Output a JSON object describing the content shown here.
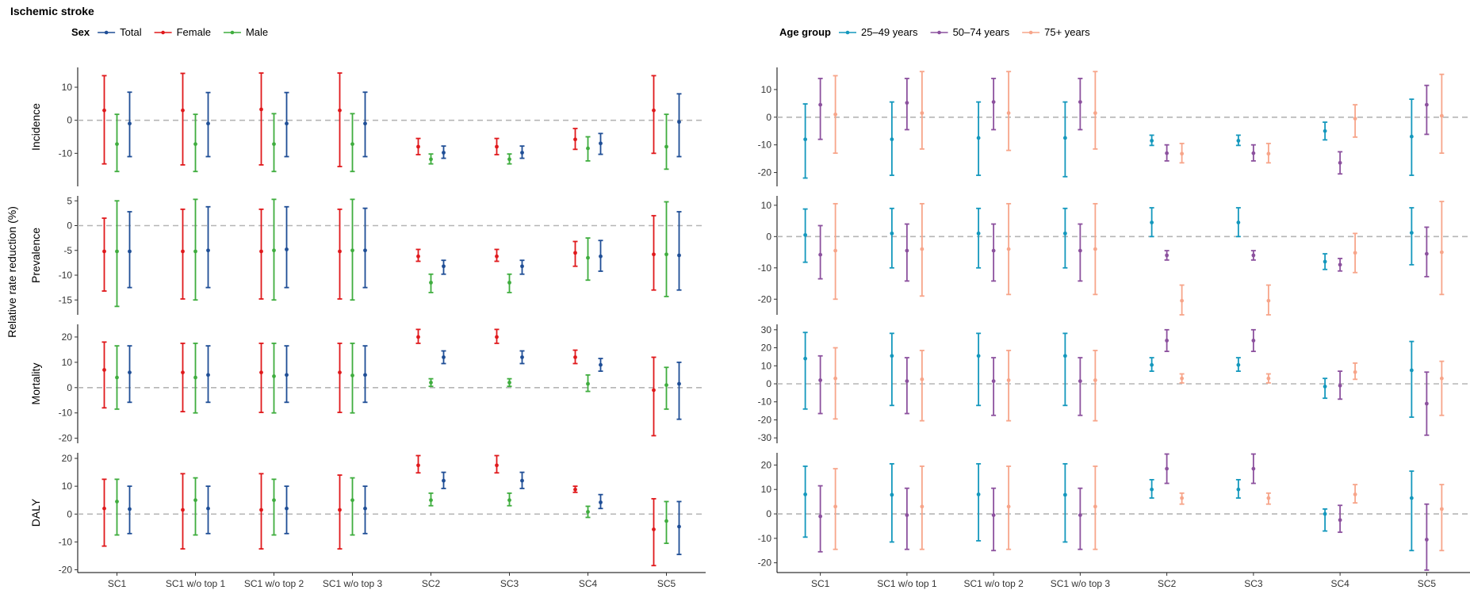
{
  "title": "Ischemic stroke",
  "ylabel": "Relative rate reduction (%)",
  "categories": [
    "SC1",
    "SC1 w/o top 1",
    "SC1 w/o top 2",
    "SC1 w/o top 3",
    "SC2",
    "SC3",
    "SC4",
    "SC5"
  ],
  "colors": {
    "Total": "#1f4e96",
    "Female": "#e0191c",
    "Male": "#3fad3e",
    "25–49 years": "#1498bd",
    "50–74 years": "#8c519e",
    "75+ years": "#f7a58a",
    "reference_line": "#b5b5b5"
  },
  "legends": [
    {
      "title": "Sex",
      "entries": [
        "Total",
        "Female",
        "Male"
      ]
    },
    {
      "title": "Age group",
      "entries": [
        "25–49 years",
        "50–74 years",
        "75+ years"
      ]
    }
  ],
  "chart_data": [
    {
      "type": "errorbar",
      "panel": "sex",
      "row": "Incidence",
      "ylim": [
        -20,
        16
      ],
      "yticks": [
        -10,
        0,
        10
      ],
      "categories": [
        "SC1",
        "SC1 w/o top 1",
        "SC1 w/o top 2",
        "SC1 w/o top 3",
        "SC2",
        "SC3",
        "SC4",
        "SC5"
      ],
      "series": [
        {
          "name": "Female",
          "values": [
            3,
            3,
            3.3,
            3,
            -8,
            -8,
            -5.8,
            3
          ],
          "lower": [
            -13.2,
            -13.5,
            -13.5,
            -14,
            -10.4,
            -10.4,
            -8.8,
            -10
          ],
          "upper": [
            13.5,
            14.2,
            14.3,
            14.3,
            -5.5,
            -5.5,
            -2.5,
            13.5
          ]
        },
        {
          "name": "Male",
          "values": [
            -7.2,
            -7.2,
            -7.2,
            -7.2,
            -11.8,
            -11.8,
            -8.5,
            -8
          ],
          "lower": [
            -15.5,
            -15.5,
            -15.5,
            -15.5,
            -13.2,
            -13.2,
            -12.3,
            -14.8
          ],
          "upper": [
            1.8,
            1.8,
            2,
            2,
            -10.2,
            -10.2,
            -5,
            1.8
          ]
        },
        {
          "name": "Total",
          "values": [
            -1,
            -1,
            -1,
            -1,
            -9.8,
            -9.8,
            -7,
            -0.5
          ],
          "lower": [
            -11,
            -11,
            -11,
            -11,
            -11.5,
            -11.5,
            -10.3,
            -11
          ],
          "upper": [
            8.5,
            8.4,
            8.4,
            8.5,
            -7.8,
            -7.8,
            -4,
            8
          ]
        }
      ]
    },
    {
      "type": "errorbar",
      "panel": "sex",
      "row": "Prevalence",
      "ylim": [
        -18,
        6
      ],
      "yticks": [
        -15,
        -10,
        -5,
        0,
        5
      ],
      "categories": [
        "SC1",
        "SC1 w/o top 1",
        "SC1 w/o top 2",
        "SC1 w/o top 3",
        "SC2",
        "SC3",
        "SC4",
        "SC5"
      ],
      "series": [
        {
          "name": "Female",
          "values": [
            -5.2,
            -5.2,
            -5.2,
            -5.2,
            -6.2,
            -6.2,
            -5.5,
            -5.8
          ],
          "lower": [
            -13.2,
            -14.8,
            -14.8,
            -14.8,
            -7.2,
            -7.2,
            -8.2,
            -13
          ],
          "upper": [
            1.5,
            3.3,
            3.3,
            3.3,
            -4.8,
            -4.8,
            -3.2,
            2
          ]
        },
        {
          "name": "Male",
          "values": [
            -5.2,
            -5.2,
            -5,
            -5,
            -11.5,
            -11.5,
            -6.5,
            -5.8
          ],
          "lower": [
            -16.3,
            -15,
            -15,
            -15,
            -13.5,
            -13.5,
            -11,
            -14.3
          ],
          "upper": [
            5,
            5.3,
            5.3,
            5.3,
            -9.8,
            -9.8,
            -2.5,
            4.8
          ]
        },
        {
          "name": "Total",
          "values": [
            -5.2,
            -5,
            -4.8,
            -5,
            -8.2,
            -8.2,
            -6.2,
            -6
          ],
          "lower": [
            -12.5,
            -12.5,
            -12.5,
            -12.5,
            -9.8,
            -9.8,
            -9.2,
            -13
          ],
          "upper": [
            2.8,
            3.8,
            3.8,
            3.5,
            -7,
            -7,
            -3,
            2.8
          ]
        }
      ]
    },
    {
      "type": "errorbar",
      "panel": "sex",
      "row": "Mortality",
      "ylim": [
        -22,
        25
      ],
      "yticks": [
        -20,
        -10,
        0,
        10,
        20
      ],
      "categories": [
        "SC1",
        "SC1 w/o top 1",
        "SC1 w/o top 2",
        "SC1 w/o top 3",
        "SC2",
        "SC3",
        "SC4",
        "SC5"
      ],
      "series": [
        {
          "name": "Female",
          "values": [
            7,
            6,
            6,
            6,
            20,
            20,
            12,
            -1
          ],
          "lower": [
            -8,
            -9.5,
            -9.8,
            -9.8,
            17.5,
            17.5,
            9.5,
            -19
          ],
          "upper": [
            18,
            17.5,
            17.5,
            17.5,
            23,
            23,
            14.8,
            12
          ]
        },
        {
          "name": "Male",
          "values": [
            4,
            4,
            4.5,
            4.8,
            2,
            2,
            1.5,
            1
          ],
          "lower": [
            -8.5,
            -10,
            -10,
            -10,
            0.5,
            0.5,
            -1.5,
            -8.5
          ],
          "upper": [
            16.5,
            17.5,
            17.5,
            17.5,
            3.5,
            3.5,
            5,
            8
          ]
        },
        {
          "name": "Total",
          "values": [
            6,
            5,
            5,
            5,
            12,
            12,
            9,
            1.5
          ],
          "lower": [
            -5.8,
            -5.8,
            -5.8,
            -5.8,
            9.5,
            9.5,
            6.5,
            -12.5
          ],
          "upper": [
            16.5,
            16.5,
            16.5,
            16.5,
            14.5,
            14.5,
            11.5,
            10
          ]
        }
      ]
    },
    {
      "type": "errorbar",
      "panel": "sex",
      "row": "DALY",
      "ylim": [
        -21,
        22
      ],
      "yticks": [
        -20,
        -10,
        0,
        10,
        20
      ],
      "categories": [
        "SC1",
        "SC1 w/o top 1",
        "SC1 w/o top 2",
        "SC1 w/o top 3",
        "SC2",
        "SC3",
        "SC4",
        "SC5"
      ],
      "series": [
        {
          "name": "Female",
          "values": [
            2,
            1.5,
            1.5,
            1.5,
            17.5,
            17.5,
            8.8,
            -5.5
          ],
          "lower": [
            -11.5,
            -12.5,
            -12.5,
            -12.5,
            14.8,
            14.8,
            7.8,
            -18.5
          ],
          "upper": [
            12.5,
            14.5,
            14.5,
            14,
            21,
            21,
            10,
            5.5
          ]
        },
        {
          "name": "Male",
          "values": [
            4.5,
            5,
            5,
            5,
            5,
            5,
            0.8,
            -2.5
          ],
          "lower": [
            -7.5,
            -7.5,
            -7.5,
            -7.5,
            3,
            3,
            -1.2,
            -10.5
          ],
          "upper": [
            12.5,
            13,
            12.5,
            13,
            7.5,
            7.5,
            2.8,
            4.5
          ]
        },
        {
          "name": "Total",
          "values": [
            1.8,
            2,
            2,
            2,
            12,
            12,
            4.2,
            -4.5
          ],
          "lower": [
            -7,
            -7,
            -7,
            -7,
            9.2,
            9.2,
            2,
            -14.5
          ],
          "upper": [
            10,
            10,
            10,
            10,
            15,
            15,
            7,
            4.5
          ]
        }
      ]
    },
    {
      "type": "errorbar",
      "panel": "age",
      "row": "Incidence",
      "ylim": [
        -25,
        18
      ],
      "yticks": [
        -20,
        -10,
        0,
        10
      ],
      "categories": [
        "SC1",
        "SC1 w/o top 1",
        "SC1 w/o top 2",
        "SC1 w/o top 3",
        "SC2",
        "SC3",
        "SC4",
        "SC5"
      ],
      "series": [
        {
          "name": "25–49 years",
          "values": [
            -8,
            -8,
            -7.5,
            -7.5,
            -8.5,
            -8.5,
            -5,
            -7
          ],
          "lower": [
            -22,
            -21,
            -21,
            -21.5,
            -10.2,
            -10.2,
            -8.2,
            -21
          ],
          "upper": [
            4.8,
            5.5,
            5.5,
            5.5,
            -6.5,
            -6.5,
            -1.8,
            6.5
          ]
        },
        {
          "name": "50–74 years",
          "values": [
            4.5,
            5.2,
            5.5,
            5.5,
            -13,
            -13,
            -16.5,
            4.5
          ],
          "lower": [
            -8,
            -4.5,
            -4.5,
            -4.5,
            -15.8,
            -15.8,
            -20.5,
            -6.2
          ],
          "upper": [
            14,
            14,
            14,
            14,
            -10,
            -10,
            -12.5,
            11.5
          ]
        },
        {
          "name": "75+ years",
          "values": [
            1,
            1.5,
            1.5,
            1.5,
            -13.2,
            -13.2,
            -0.5,
            0.5
          ],
          "lower": [
            -13,
            -11.5,
            -12,
            -11.5,
            -16.5,
            -16.5,
            -7.2,
            -13
          ],
          "upper": [
            15,
            16.5,
            16.5,
            16.5,
            -9.5,
            -9.5,
            4.5,
            15.5
          ]
        }
      ]
    },
    {
      "type": "errorbar",
      "panel": "age",
      "row": "Prevalence",
      "ylim": [
        -25,
        13
      ],
      "yticks": [
        -20,
        -10,
        0,
        10
      ],
      "categories": [
        "SC1",
        "SC1 w/o top 1",
        "SC1 w/o top 2",
        "SC1 w/o top 3",
        "SC2",
        "SC3",
        "SC4",
        "SC5"
      ],
      "series": [
        {
          "name": "25–49 years",
          "values": [
            0.5,
            1,
            1,
            1,
            4.5,
            4.5,
            -8,
            1.2
          ],
          "lower": [
            -8.2,
            -10,
            -10,
            -10,
            0,
            0,
            -10.5,
            -9
          ],
          "upper": [
            8.8,
            9,
            9,
            9,
            9.2,
            9.2,
            -5.5,
            9.2
          ]
        },
        {
          "name": "50–74 years",
          "values": [
            -5.8,
            -4.5,
            -4.5,
            -4.5,
            -6,
            -6,
            -9,
            -5.5
          ],
          "lower": [
            -13.5,
            -14.2,
            -14.2,
            -14.2,
            -7.5,
            -7.5,
            -11,
            -12.8
          ],
          "upper": [
            3.5,
            4,
            4,
            4,
            -4.5,
            -4.5,
            -7,
            3
          ]
        },
        {
          "name": "75+ years",
          "values": [
            -4.5,
            -4,
            -4,
            -4,
            -20.5,
            -20.5,
            -5.2,
            -5
          ],
          "lower": [
            -20,
            -19,
            -18.5,
            -18.5,
            -25,
            -25,
            -11.5,
            -18.5
          ],
          "upper": [
            10.5,
            10.5,
            10.5,
            10.5,
            -15.5,
            -15.5,
            1,
            11.2
          ]
        }
      ]
    },
    {
      "type": "errorbar",
      "panel": "age",
      "row": "Mortality",
      "ylim": [
        -33,
        33
      ],
      "yticks": [
        -30,
        -20,
        -10,
        0,
        10,
        20,
        30
      ],
      "categories": [
        "SC1",
        "SC1 w/o top 1",
        "SC1 w/o top 2",
        "SC1 w/o top 3",
        "SC2",
        "SC3",
        "SC4",
        "SC5"
      ],
      "series": [
        {
          "name": "25–49 years",
          "values": [
            14,
            15.5,
            15.5,
            15.5,
            10.5,
            10.5,
            -1.5,
            7.5
          ],
          "lower": [
            -14,
            -12,
            -12,
            -12,
            7,
            7,
            -8,
            -18.5
          ],
          "upper": [
            28.5,
            28,
            28,
            28,
            14.5,
            14.5,
            3,
            23.5
          ]
        },
        {
          "name": "50–74 years",
          "values": [
            2,
            1.5,
            1.5,
            1.5,
            24,
            24,
            -1,
            -11
          ],
          "lower": [
            -16.5,
            -16.5,
            -17.5,
            -17.5,
            18,
            18,
            -8.5,
            -28.5
          ],
          "upper": [
            15.5,
            14.5,
            14.5,
            14.5,
            30,
            30,
            7,
            6.5
          ]
        },
        {
          "name": "75+ years",
          "values": [
            3,
            2.5,
            2,
            2,
            3,
            3,
            6.5,
            3
          ],
          "lower": [
            -19.5,
            -20.5,
            -20.5,
            -20.5,
            0.5,
            0.5,
            2.5,
            -17.5
          ],
          "upper": [
            20,
            18.5,
            18.5,
            18.5,
            5.5,
            5.5,
            11.5,
            12.5
          ]
        }
      ]
    },
    {
      "type": "errorbar",
      "panel": "age",
      "row": "DALY",
      "ylim": [
        -24,
        25
      ],
      "yticks": [
        -20,
        -10,
        0,
        10,
        20
      ],
      "categories": [
        "SC1",
        "SC1 w/o top 1",
        "SC1 w/o top 2",
        "SC1 w/o top 3",
        "SC2",
        "SC3",
        "SC4",
        "SC5"
      ],
      "series": [
        {
          "name": "25–49 years",
          "values": [
            8,
            7.8,
            8,
            7.8,
            10,
            10,
            0,
            6.5
          ],
          "lower": [
            -9.5,
            -11.5,
            -11,
            -11.5,
            6.5,
            6.5,
            -7,
            -15
          ],
          "upper": [
            19.5,
            20.5,
            20.5,
            20.5,
            14,
            14,
            2,
            17.5
          ]
        },
        {
          "name": "50–74 years",
          "values": [
            -1,
            -0.5,
            -0.5,
            -0.5,
            18.5,
            18.5,
            -2.5,
            -10.5
          ],
          "lower": [
            -15.5,
            -14.5,
            -15,
            -14.5,
            12.5,
            12.5,
            -7.5,
            -23
          ],
          "upper": [
            11.5,
            10.5,
            10.5,
            10.5,
            24.5,
            24.5,
            3.5,
            4
          ]
        },
        {
          "name": "75+ years",
          "values": [
            3,
            3,
            3,
            3,
            6.5,
            6.5,
            8,
            2
          ],
          "lower": [
            -14.5,
            -14.5,
            -14.5,
            -14.5,
            4,
            4,
            4.5,
            -15
          ],
          "upper": [
            18.5,
            19.5,
            19.5,
            19.5,
            8.5,
            8.5,
            12,
            12
          ]
        }
      ]
    }
  ]
}
